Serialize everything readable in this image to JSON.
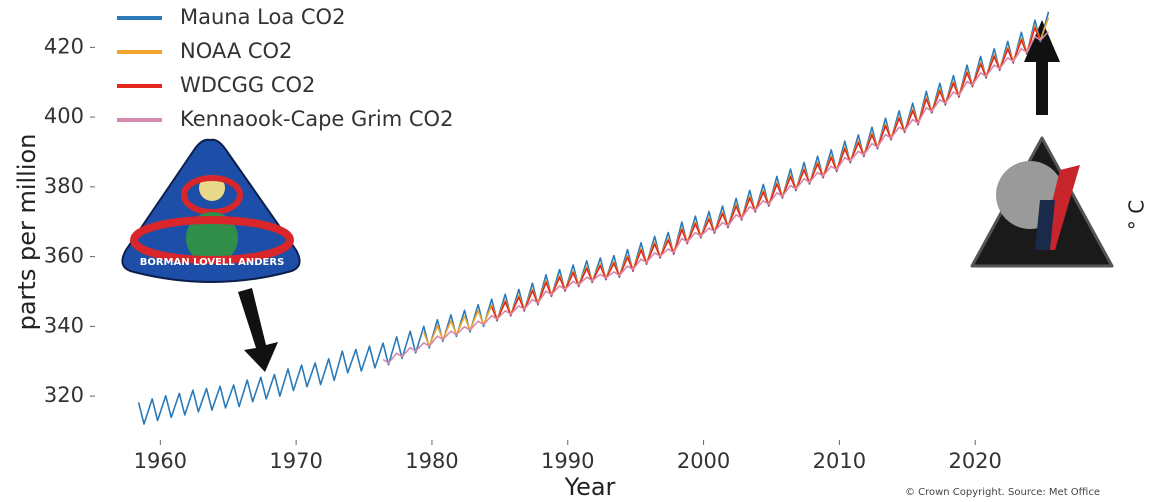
{
  "chart_data": {
    "type": "line",
    "y_label": "parts per million",
    "x_label": "Year",
    "right_label": "° C",
    "source": "© Crown Copyright. Source: Met Office",
    "patch_text": "BORMAN LOVELL ANDERS",
    "legend": "upper left",
    "grid": false,
    "xlim": [
      1956,
      2030
    ],
    "xticks": [
      1960,
      1970,
      1980,
      1990,
      2000,
      2010,
      2020
    ],
    "ylim": [
      310,
      433
    ],
    "yticks": [
      320,
      340,
      360,
      380,
      400,
      420
    ],
    "x": [
      1958.4,
      1958.8,
      1959.4,
      1959.8,
      1960.4,
      1960.8,
      1961.4,
      1961.8,
      1962.4,
      1962.8,
      1963.4,
      1963.8,
      1964.4,
      1964.8,
      1965.4,
      1965.8,
      1966.4,
      1966.8,
      1967.4,
      1967.8,
      1968.4,
      1968.8,
      1969.4,
      1969.8,
      1970.4,
      1970.8,
      1971.4,
      1971.8,
      1972.4,
      1972.8,
      1973.4,
      1973.8,
      1974.4,
      1974.8,
      1975.4,
      1975.8,
      1976.4,
      1976.8,
      1977.4,
      1977.8,
      1978.4,
      1978.8,
      1979.4,
      1979.8,
      1980.4,
      1980.8,
      1981.4,
      1981.8,
      1982.4,
      1982.8,
      1983.4,
      1983.8,
      1984.4,
      1984.8,
      1985.4,
      1985.8,
      1986.4,
      1986.8,
      1987.4,
      1987.8,
      1988.4,
      1988.8,
      1989.4,
      1989.8,
      1990.4,
      1990.8,
      1991.4,
      1991.8,
      1992.4,
      1992.8,
      1993.4,
      1993.8,
      1994.4,
      1994.8,
      1995.4,
      1995.8,
      1996.4,
      1996.8,
      1997.4,
      1997.8,
      1998.4,
      1998.8,
      1999.4,
      1999.8,
      2000.4,
      2000.8,
      2001.4,
      2001.8,
      2002.4,
      2002.8,
      2003.4,
      2003.8,
      2004.4,
      2004.8,
      2005.4,
      2005.8,
      2006.4,
      2006.8,
      2007.4,
      2007.8,
      2008.4,
      2008.8,
      2009.4,
      2009.8,
      2010.4,
      2010.8,
      2011.4,
      2011.8,
      2012.4,
      2012.8,
      2013.4,
      2013.8,
      2014.4,
      2014.8,
      2015.4,
      2015.8,
      2016.4,
      2016.8,
      2017.4,
      2017.8,
      2018.4,
      2018.8,
      2019.4,
      2019.8,
      2020.4,
      2020.8,
      2021.4,
      2021.8,
      2022.4,
      2022.8,
      2023.4,
      2023.8,
      2024.4,
      2024.8,
      2025.4
    ],
    "series": [
      {
        "name": "Mauna Loa CO2",
        "color": "#2a7ab9",
        "values": [
          318.2,
          312.0,
          319.2,
          313.0,
          320.1,
          313.9,
          320.8,
          314.6,
          321.7,
          315.5,
          322.2,
          316.0,
          322.8,
          316.6,
          323.2,
          317.0,
          324.6,
          318.4,
          325.4,
          319.2,
          326.2,
          320.0,
          327.8,
          321.6,
          328.9,
          322.7,
          329.5,
          323.3,
          330.7,
          324.5,
          332.9,
          326.7,
          333.4,
          327.2,
          334.3,
          328.1,
          335.2,
          329.0,
          337.0,
          330.8,
          338.6,
          332.4,
          340.0,
          333.8,
          341.9,
          335.7,
          343.3,
          337.1,
          344.6,
          338.4,
          346.2,
          340.0,
          347.8,
          341.6,
          349.2,
          343.0,
          350.6,
          344.4,
          352.4,
          346.2,
          354.8,
          348.6,
          356.3,
          350.1,
          357.6,
          351.4,
          358.8,
          352.6,
          359.6,
          353.4,
          360.3,
          354.1,
          362.0,
          355.8,
          364.0,
          357.8,
          365.8,
          359.6,
          366.9,
          360.7,
          369.9,
          363.7,
          371.6,
          365.4,
          372.9,
          366.7,
          374.5,
          368.3,
          376.7,
          370.5,
          379.0,
          372.8,
          380.7,
          374.5,
          383.0,
          376.8,
          385.1,
          378.9,
          387.0,
          380.8,
          388.8,
          382.6,
          390.6,
          384.4,
          393.1,
          386.9,
          394.9,
          388.7,
          397.1,
          390.9,
          399.7,
          393.5,
          401.8,
          395.6,
          404.0,
          397.8,
          407.4,
          401.2,
          409.7,
          403.5,
          411.9,
          405.7,
          414.9,
          408.7,
          417.4,
          411.2,
          419.6,
          413.4,
          421.7,
          415.5,
          424.3,
          418.1,
          427.8,
          421.6,
          430.2
        ]
      },
      {
        "name": "NOAA CO2",
        "color": "#efa52b",
        "values": [
          null,
          null,
          null,
          null,
          null,
          null,
          null,
          null,
          null,
          null,
          null,
          null,
          null,
          null,
          null,
          null,
          null,
          null,
          null,
          null,
          null,
          null,
          null,
          null,
          null,
          null,
          null,
          null,
          null,
          null,
          null,
          null,
          null,
          null,
          null,
          null,
          null,
          null,
          null,
          null,
          null,
          null,
          338.3,
          334.3,
          340.2,
          336.2,
          341.6,
          337.6,
          342.9,
          338.9,
          344.5,
          340.5,
          346.1,
          342.1,
          347.5,
          343.5,
          348.9,
          344.9,
          350.7,
          346.7,
          353.1,
          349.1,
          354.6,
          350.6,
          355.9,
          351.9,
          357.1,
          353.1,
          357.9,
          353.9,
          358.6,
          354.6,
          360.3,
          356.3,
          362.3,
          358.3,
          364.1,
          360.1,
          365.2,
          361.2,
          368.2,
          364.2,
          369.9,
          365.9,
          371.2,
          367.2,
          372.8,
          368.8,
          375.0,
          371.0,
          377.3,
          373.3,
          379.0,
          375.0,
          381.3,
          377.3,
          383.4,
          379.4,
          385.3,
          381.3,
          387.1,
          383.1,
          388.9,
          384.9,
          391.4,
          387.4,
          393.2,
          389.2,
          395.4,
          391.4,
          398.0,
          394.0,
          400.1,
          396.1,
          402.3,
          398.3,
          405.7,
          401.7,
          408.0,
          404.0,
          410.2,
          406.2,
          413.2,
          409.2,
          415.7,
          411.7,
          417.9,
          413.9,
          420.0,
          416.0,
          422.6,
          418.6,
          426.1,
          422.1,
          428.5
        ]
      },
      {
        "name": "WDCGG CO2",
        "color": "#e2261d",
        "values": [
          null,
          null,
          null,
          null,
          null,
          null,
          null,
          null,
          null,
          null,
          null,
          null,
          null,
          null,
          null,
          null,
          null,
          null,
          null,
          null,
          null,
          null,
          null,
          null,
          null,
          null,
          null,
          null,
          null,
          null,
          null,
          null,
          null,
          null,
          null,
          null,
          null,
          null,
          null,
          null,
          null,
          null,
          null,
          null,
          null,
          null,
          null,
          null,
          null,
          null,
          null,
          null,
          345.6,
          341.8,
          347.0,
          343.2,
          348.4,
          344.6,
          350.2,
          346.4,
          352.6,
          348.8,
          354.1,
          350.3,
          355.4,
          351.6,
          356.6,
          352.8,
          357.4,
          353.6,
          358.1,
          354.3,
          359.8,
          356.0,
          361.8,
          358.0,
          363.6,
          359.8,
          364.7,
          360.9,
          367.7,
          363.9,
          369.4,
          365.6,
          370.7,
          366.9,
          372.3,
          368.5,
          374.5,
          370.7,
          376.8,
          373.0,
          378.5,
          374.7,
          380.8,
          377.0,
          382.9,
          379.1,
          384.8,
          381.0,
          386.6,
          382.8,
          388.4,
          384.6,
          390.9,
          387.1,
          392.7,
          388.9,
          394.9,
          391.1,
          397.5,
          393.7,
          399.6,
          395.8,
          401.8,
          398.0,
          405.2,
          401.4,
          407.5,
          403.7,
          409.7,
          405.9,
          412.7,
          408.9,
          415.2,
          411.4,
          417.4,
          413.6,
          419.5,
          415.7,
          422.1,
          418.3,
          425.6,
          421.8,
          null
        ]
      },
      {
        "name": "Kennaook-Cape Grim CO2",
        "color": "#d48aae",
        "values": [
          null,
          null,
          null,
          null,
          null,
          null,
          null,
          null,
          null,
          null,
          null,
          null,
          null,
          null,
          null,
          null,
          null,
          null,
          null,
          null,
          null,
          null,
          null,
          null,
          null,
          null,
          null,
          null,
          null,
          null,
          null,
          null,
          null,
          null,
          null,
          null,
          330.5,
          329.5,
          332.3,
          331.3,
          333.9,
          332.9,
          335.3,
          334.3,
          337.2,
          336.2,
          338.6,
          337.6,
          339.9,
          338.9,
          341.5,
          340.5,
          343.1,
          342.1,
          344.5,
          343.5,
          345.9,
          344.9,
          347.7,
          346.7,
          350.1,
          349.1,
          351.6,
          350.6,
          352.9,
          351.9,
          354.1,
          353.1,
          354.9,
          353.9,
          355.6,
          354.6,
          357.3,
          356.3,
          359.3,
          358.3,
          361.1,
          360.1,
          362.2,
          361.2,
          365.2,
          364.2,
          366.9,
          365.9,
          368.2,
          367.2,
          369.8,
          368.8,
          372.0,
          371.0,
          374.3,
          373.3,
          376.0,
          375.0,
          378.3,
          377.3,
          380.4,
          379.4,
          382.3,
          381.3,
          384.1,
          383.1,
          385.9,
          384.9,
          388.4,
          387.4,
          390.2,
          389.2,
          392.4,
          391.4,
          395.0,
          394.0,
          397.1,
          396.1,
          399.3,
          398.3,
          402.7,
          401.7,
          405.0,
          404.0,
          407.2,
          406.2,
          410.2,
          409.2,
          412.7,
          411.7,
          414.9,
          413.9,
          417.0,
          416.0,
          419.6,
          418.6,
          423.1,
          422.1,
          424.5
        ]
      }
    ]
  }
}
